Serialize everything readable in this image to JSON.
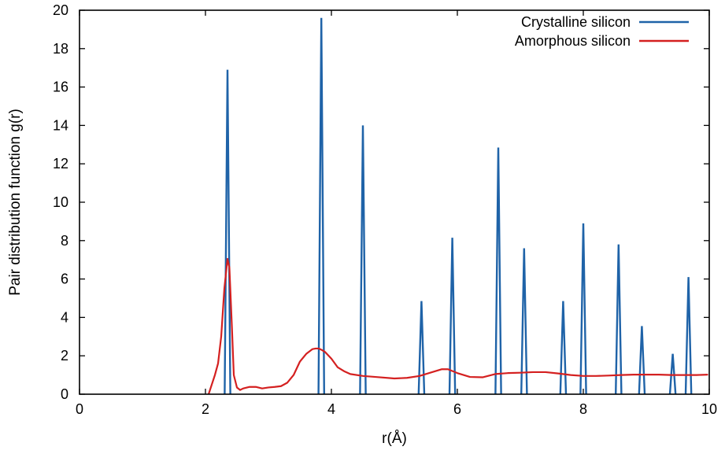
{
  "chart_data": {
    "type": "line",
    "xlabel": "r(Å)",
    "ylabel": "Pair distribution function g(r)",
    "xlim": [
      0,
      10
    ],
    "ylim": [
      0,
      20
    ],
    "xticks": [
      "0",
      "2",
      "4",
      "6",
      "8",
      "10"
    ],
    "yticks": [
      "0",
      "2",
      "4",
      "6",
      "8",
      "10",
      "12",
      "14",
      "16",
      "18",
      "20"
    ],
    "grid": false,
    "legend_position": "top-right",
    "series": [
      {
        "name": "Crystalline silicon",
        "color": "#1f63a8",
        "peaks": [
          {
            "r": 2.35,
            "g": 16.9
          },
          {
            "r": 3.84,
            "g": 19.6
          },
          {
            "r": 4.5,
            "g": 14.0
          },
          {
            "r": 5.43,
            "g": 4.85
          },
          {
            "r": 5.92,
            "g": 8.15
          },
          {
            "r": 6.65,
            "g": 12.85
          },
          {
            "r": 7.06,
            "g": 7.6
          },
          {
            "r": 7.68,
            "g": 4.85
          },
          {
            "r": 8.0,
            "g": 8.9
          },
          {
            "r": 8.56,
            "g": 7.8
          },
          {
            "r": 8.93,
            "g": 3.55
          },
          {
            "r": 9.42,
            "g": 2.1
          },
          {
            "r": 9.67,
            "g": 6.1
          }
        ]
      },
      {
        "name": "Amorphous silicon",
        "color": "#d42020",
        "x": [
          2.05,
          2.1,
          2.15,
          2.2,
          2.25,
          2.3,
          2.35,
          2.38,
          2.42,
          2.45,
          2.5,
          2.55,
          2.6,
          2.7,
          2.8,
          2.9,
          3.0,
          3.1,
          3.2,
          3.3,
          3.4,
          3.5,
          3.6,
          3.7,
          3.75,
          3.8,
          3.85,
          3.9,
          4.0,
          4.1,
          4.2,
          4.3,
          4.5,
          4.7,
          5.0,
          5.2,
          5.4,
          5.6,
          5.75,
          5.85,
          6.0,
          6.2,
          6.4,
          6.6,
          6.8,
          7.0,
          7.2,
          7.4,
          7.6,
          7.8,
          8.0,
          8.2,
          8.4,
          8.6,
          8.8,
          9.0,
          9.2,
          9.4,
          9.6,
          9.8,
          9.98
        ],
        "y": [
          0.0,
          0.5,
          1.0,
          1.6,
          3.0,
          5.5,
          7.05,
          6.6,
          3.5,
          1.0,
          0.35,
          0.22,
          0.3,
          0.38,
          0.38,
          0.3,
          0.35,
          0.38,
          0.42,
          0.6,
          1.0,
          1.7,
          2.1,
          2.35,
          2.38,
          2.38,
          2.3,
          2.2,
          1.85,
          1.4,
          1.2,
          1.05,
          0.95,
          0.9,
          0.82,
          0.85,
          0.95,
          1.15,
          1.3,
          1.3,
          1.1,
          0.9,
          0.88,
          1.05,
          1.1,
          1.12,
          1.15,
          1.15,
          1.08,
          1.0,
          0.95,
          0.95,
          0.97,
          1.0,
          1.02,
          1.02,
          1.02,
          1.0,
          1.0,
          1.0,
          1.02
        ]
      }
    ]
  }
}
